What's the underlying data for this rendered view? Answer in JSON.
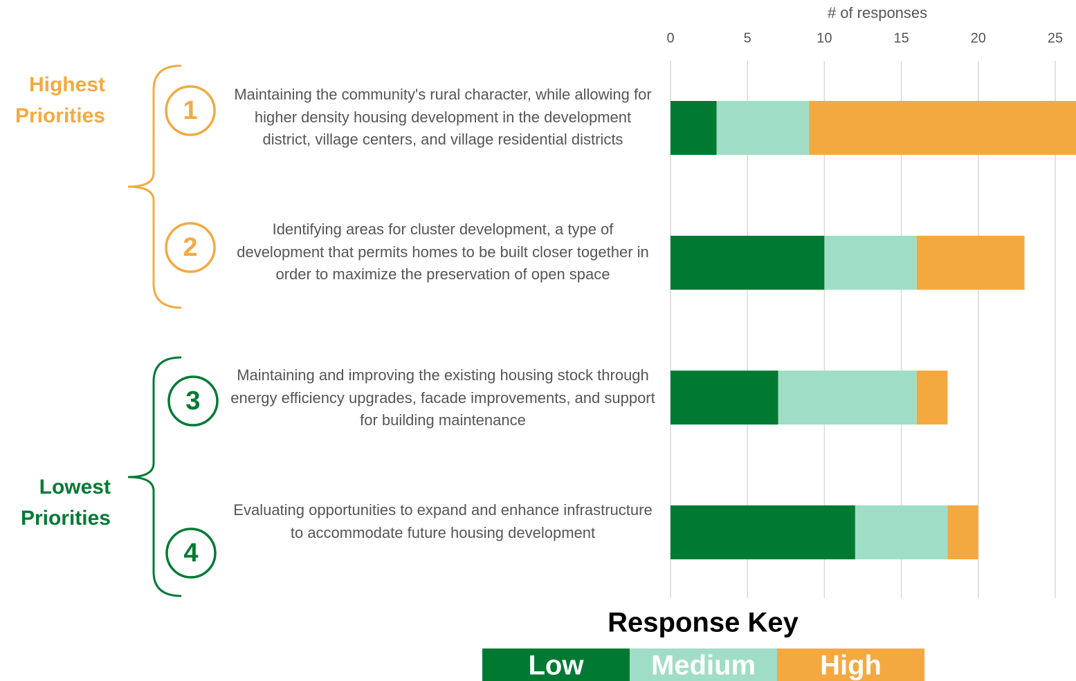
{
  "chart_data": {
    "type": "stacked-barh",
    "xlabel": "# of responses",
    "categories": [
      "Maintaining the community's rural character, while allowing for higher density housing development in the development district, village centers, and village residential districts",
      "Identifying areas for cluster development, a type of development that permits homes to be built closer together in order to maximize the preservation of open space",
      "Maintaining and improving the existing housing stock through energy efficiency upgrades, facade improvements, and support for building maintenance",
      "Evaluating opportunities to expand and enhance infrastructure to accommodate future housing development"
    ],
    "ranks": [
      "1",
      "2",
      "3",
      "4"
    ],
    "groups": [
      {
        "label": "Highest Priorities",
        "color": "#f4a940"
      },
      {
        "label": "Lowest Priorities",
        "color": "#007a33"
      }
    ],
    "series": [
      {
        "name": "Low",
        "color": "#007a33",
        "values": [
          3,
          10,
          7,
          12
        ]
      },
      {
        "name": "Medium",
        "color": "#a0ddc6",
        "values": [
          6,
          6,
          9,
          6
        ]
      },
      {
        "name": "High",
        "color": "#f4a940",
        "values": [
          18,
          7,
          2,
          2
        ]
      }
    ],
    "legend_title": "Response Key",
    "xlim": [
      0,
      26.4
    ],
    "xticks": [
      0,
      5,
      10,
      15,
      20,
      25
    ],
    "grid": true
  }
}
